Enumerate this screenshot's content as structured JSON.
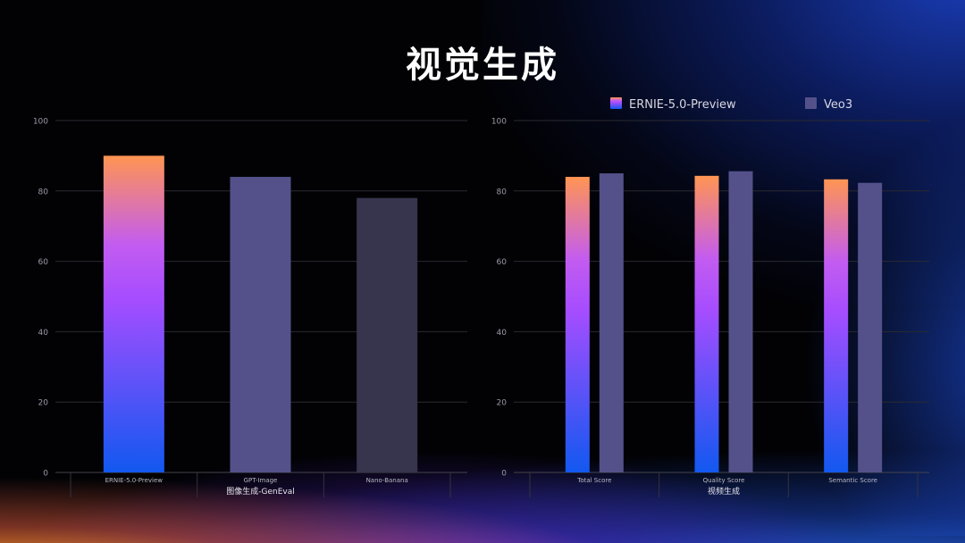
{
  "page": {
    "title": "视觉生成"
  },
  "chart_data": [
    {
      "type": "bar",
      "xlabel": "图像生成-GenEval",
      "ylabel": "",
      "ylim": [
        0,
        100
      ],
      "yticks": [
        0,
        20,
        40,
        60,
        80,
        100
      ],
      "grid": true,
      "categories": [
        "ERNIE-5.0-Preview",
        "GPT-Image",
        "Nano-Banana"
      ],
      "values": [
        90,
        84,
        78
      ],
      "bar_colors": [
        "gradient",
        "#54518a",
        "#37354d"
      ]
    },
    {
      "type": "bar",
      "xlabel": "视频生成",
      "ylabel": "",
      "ylim": [
        0,
        100
      ],
      "yticks": [
        0,
        20,
        40,
        60,
        80,
        100
      ],
      "grid": true,
      "legend_position": "top",
      "categories": [
        "Total Score",
        "Quality Score",
        "Semantic Score"
      ],
      "series": [
        {
          "name": "ERNIE-5.0-Preview",
          "values": [
            84,
            84.3,
            83.3
          ],
          "color": "gradient"
        },
        {
          "name": "Veo3",
          "values": [
            85,
            85.6,
            82.3
          ],
          "color": "#54518a"
        }
      ]
    }
  ],
  "colors": {
    "gradient_top": "#ff9552",
    "gradient_mid": "#a64dff",
    "gradient_bottom": "#1258f0",
    "grid": "#2a2a30",
    "axis_text": "#9a9aa6",
    "title": "#ffffff"
  }
}
